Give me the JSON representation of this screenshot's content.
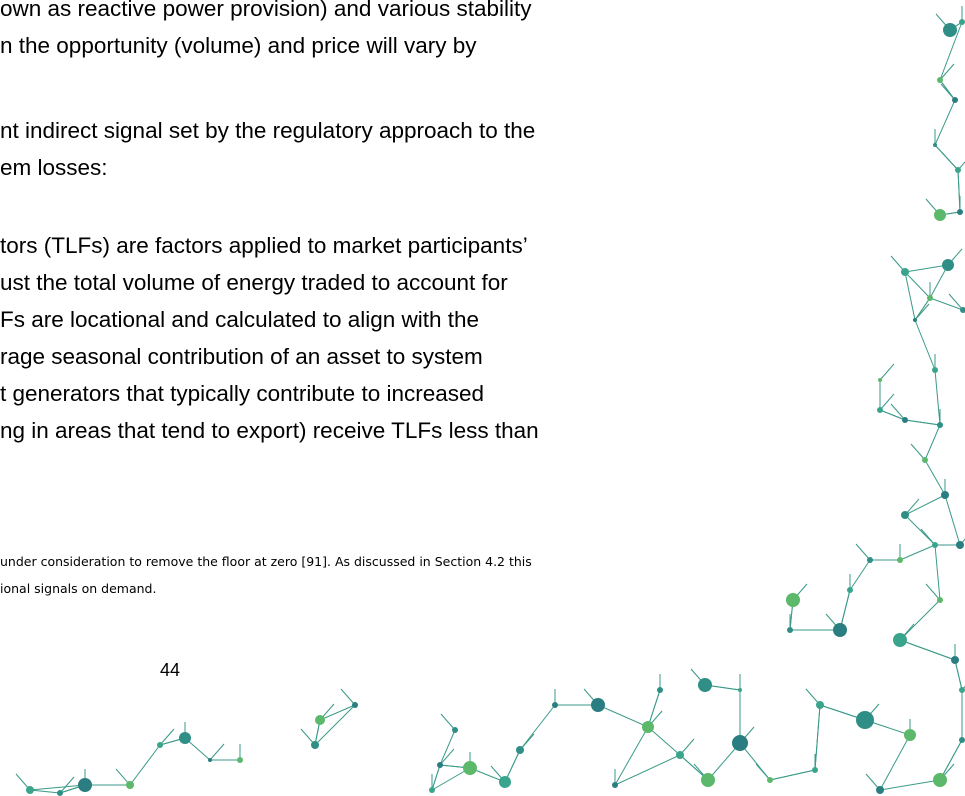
{
  "body": {
    "paragraphs": [
      [
        "own as reactive power provision) and various stability",
        "n the opportunity (volume) and price will vary by"
      ],
      [
        "nt indirect signal set by the regulatory approach to the",
        "em losses:"
      ],
      [
        "tors (TLFs) are factors applied to market participants’",
        "ust the total volume of energy traded to account for",
        "Fs are locational and calculated to align with the",
        "rage seasonal contribution of an asset to system",
        "t generators that typically contribute to increased",
        "ng in areas that tend to export) receive TLFs less than"
      ]
    ]
  },
  "footnote": [
    "under consideration to remove the floor at zero [91]. As discussed in Section 4.2 this",
    "ional signals on demand."
  ],
  "page_number": "44"
}
